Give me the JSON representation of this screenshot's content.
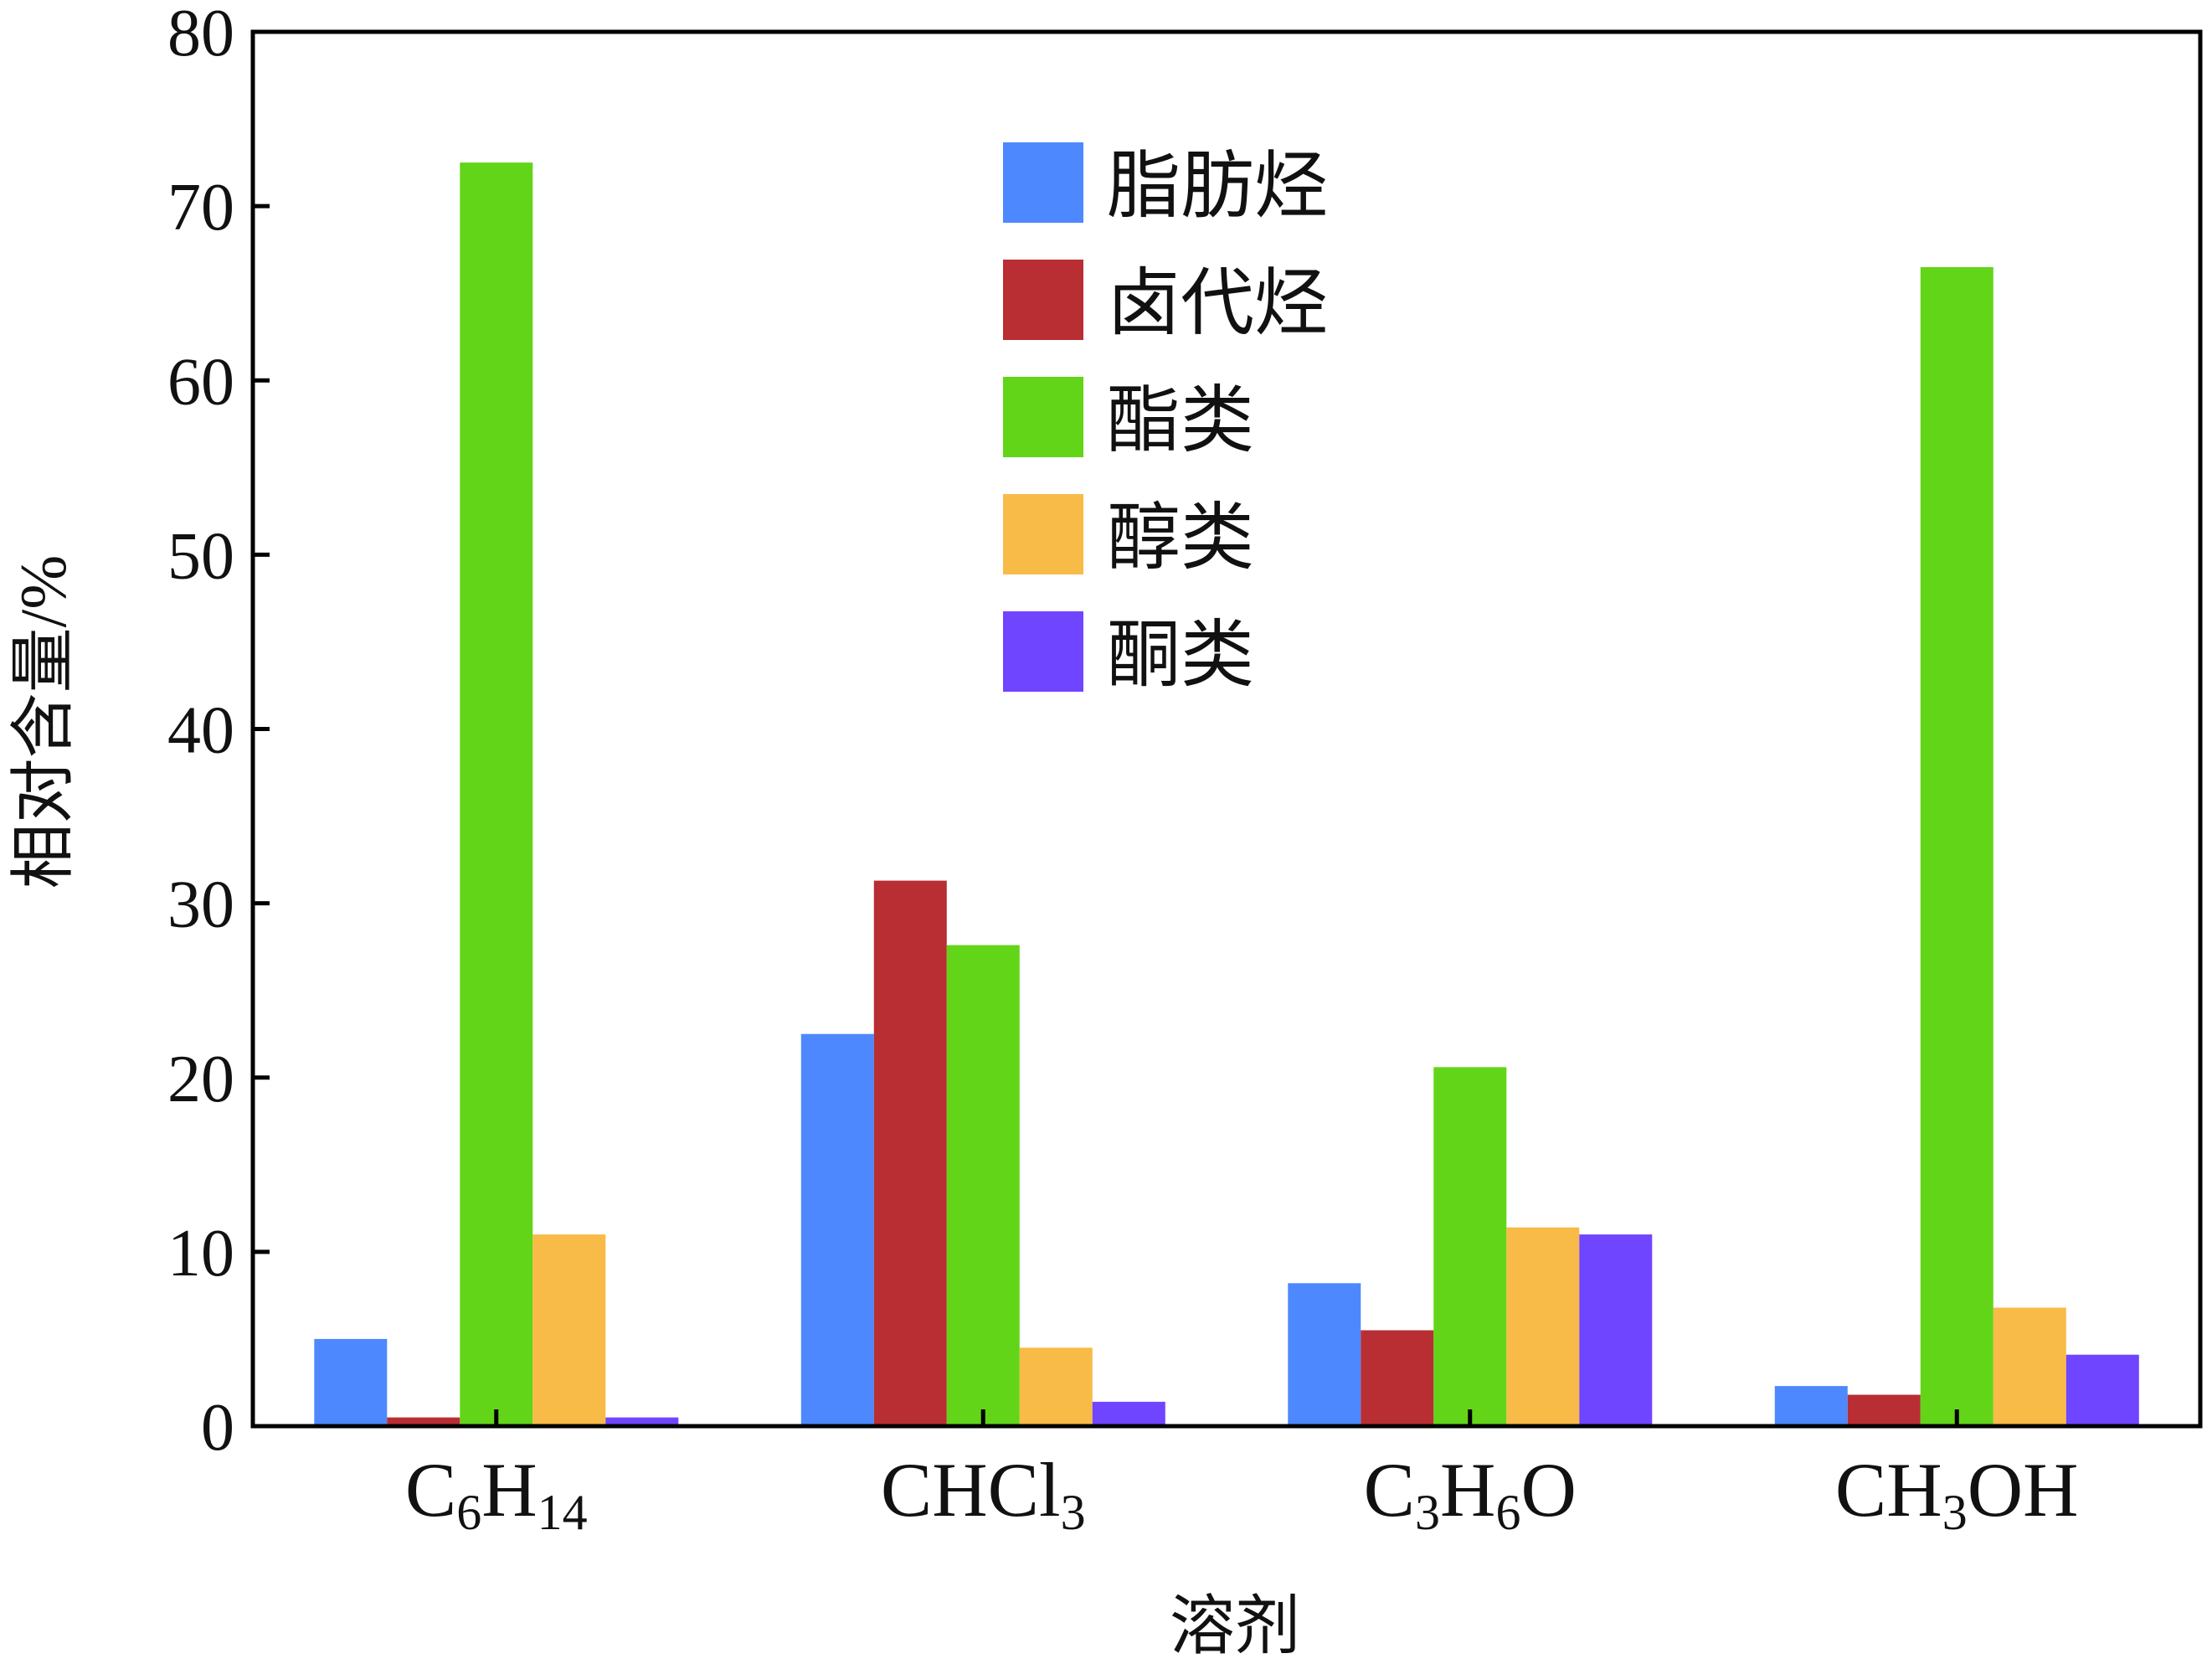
{
  "chart_data": {
    "type": "bar",
    "title": "",
    "xlabel": "溶剂",
    "ylabel": "相对含量/%",
    "ylim": [
      0,
      80
    ],
    "yticks": [
      0,
      10,
      20,
      30,
      40,
      50,
      60,
      70,
      80
    ],
    "grid": false,
    "legend_position": "top-center",
    "categories": [
      {
        "base": "C",
        "parts": [
          {
            "t": "C",
            "sub": false
          },
          {
            "t": "6",
            "sub": true
          },
          {
            "t": "H",
            "sub": false
          },
          {
            "t": "14",
            "sub": true
          }
        ],
        "label": "C6H14"
      },
      {
        "base": "CHCl",
        "parts": [
          {
            "t": "CHCl",
            "sub": false
          },
          {
            "t": "3",
            "sub": true
          }
        ],
        "label": "CHCl3"
      },
      {
        "base": "C",
        "parts": [
          {
            "t": "C",
            "sub": false
          },
          {
            "t": "3",
            "sub": true
          },
          {
            "t": "H",
            "sub": false
          },
          {
            "t": "6",
            "sub": true
          },
          {
            "t": "O",
            "sub": false
          }
        ],
        "label": "C3H6O"
      },
      {
        "base": "CH",
        "parts": [
          {
            "t": "CH",
            "sub": false
          },
          {
            "t": "3",
            "sub": true
          },
          {
            "t": "OH",
            "sub": false
          }
        ],
        "label": "CH3OH"
      }
    ],
    "series": [
      {
        "name": "脂肪烃",
        "color": "#4d88ff",
        "values": [
          5.0,
          22.5,
          8.2,
          2.3
        ]
      },
      {
        "name": "卤代烃",
        "color": "#b82e33",
        "values": [
          0.5,
          31.3,
          5.5,
          1.8
        ]
      },
      {
        "name": "酯类",
        "color": "#62d519",
        "values": [
          72.5,
          27.6,
          20.6,
          66.5
        ]
      },
      {
        "name": "醇类",
        "color": "#f8bb47",
        "values": [
          11.0,
          4.5,
          11.4,
          6.8
        ]
      },
      {
        "name": "酮类",
        "color": "#7045ff",
        "values": [
          0.5,
          1.4,
          11.0,
          4.1
        ]
      }
    ]
  }
}
